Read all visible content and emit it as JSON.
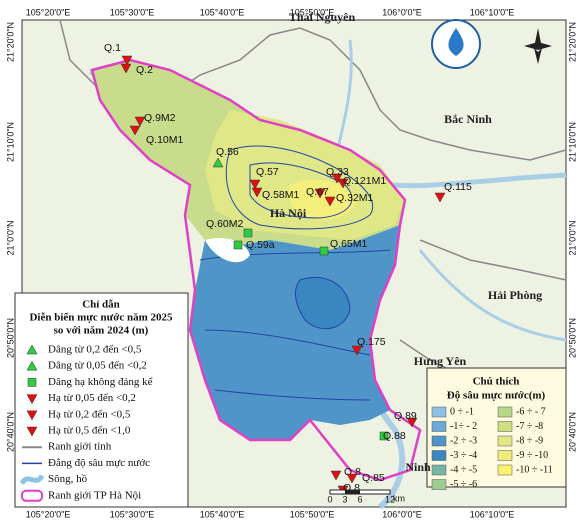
{
  "map": {
    "top_coords": [
      "105°20'0\"E",
      "105°30'0\"E",
      "105°40'0\"E",
      "105°50'0\"E",
      "106°0'0\"E",
      "106°10'0\"E"
    ],
    "bottom_coords": [
      "105°20'0\"E",
      "105°30'0\"E",
      "105°40'0\"E",
      "105°50'0\"E",
      "106°0'0\"E",
      "106°10'0\"E"
    ],
    "left_coords": [
      "21°20'0\"N",
      "21°10'0\"N",
      "21°0'0\"N",
      "20°50'0\"N",
      "20°40'0\"N"
    ],
    "right_coords": [
      "21°20'0\"N",
      "21°10'0\"N",
      "21°0'0\"N",
      "20°50'0\"N",
      "20°40'0\"N"
    ],
    "provinces": [
      "Thái Nguyên",
      "Bắc Ninh",
      "Hà Nội",
      "Hải Phòng",
      "Hưng Yên",
      "Ninh"
    ],
    "wells": [
      "Q.1",
      "Q.2",
      "Q.9M2",
      "Q.10M1",
      "Q.56",
      "Q.57",
      "Q.58M1",
      "Q.33",
      "Q.121M1",
      "Q.67",
      "Q.32M1",
      "Q.115",
      "Q.60M2",
      "Q.59a",
      "Q.65M1",
      "Q.175",
      "Q.89",
      "Q.88",
      "Q.8",
      "Q.85",
      "Q.8"
    ],
    "legend": {
      "title": "Chỉ dẫn",
      "subtitle": [
        "Diễn biến mực nước năm 2025",
        "so với năm 2024 (m)"
      ],
      "items": [
        "Dâng từ 0,2 đến <0,5",
        "Dâng từ 0,05 đến <0,2",
        "Dâng hạ không đáng kể",
        "Hạ từ 0,05 đến <0,2",
        "Hạ từ 0,2 đến <0,5",
        "Hạ từ 0,5 đến <1,0",
        "Ranh giới tỉnh",
        "Đẳng độ sâu mực nước",
        "Sông, hồ",
        "Ranh giới TP Hà Nội"
      ]
    },
    "depth_legend": {
      "title": "Chú thích",
      "subtitle": "Độ sâu mực nước(m)",
      "classes": [
        "0 ÷ -1",
        "-1÷ - 2",
        "-2 ÷ -3",
        "-3 ÷ -4",
        "-4 ÷ -5",
        "-5 ÷ -6",
        "-6 ÷ - 7",
        "-7 ÷ -8",
        "-8 ÷ -9",
        "-9 ÷ -10",
        "-10 ÷ -11"
      ]
    },
    "scale": {
      "labels": [
        "0",
        "3",
        "6",
        "12"
      ],
      "unit": "km"
    }
  }
}
